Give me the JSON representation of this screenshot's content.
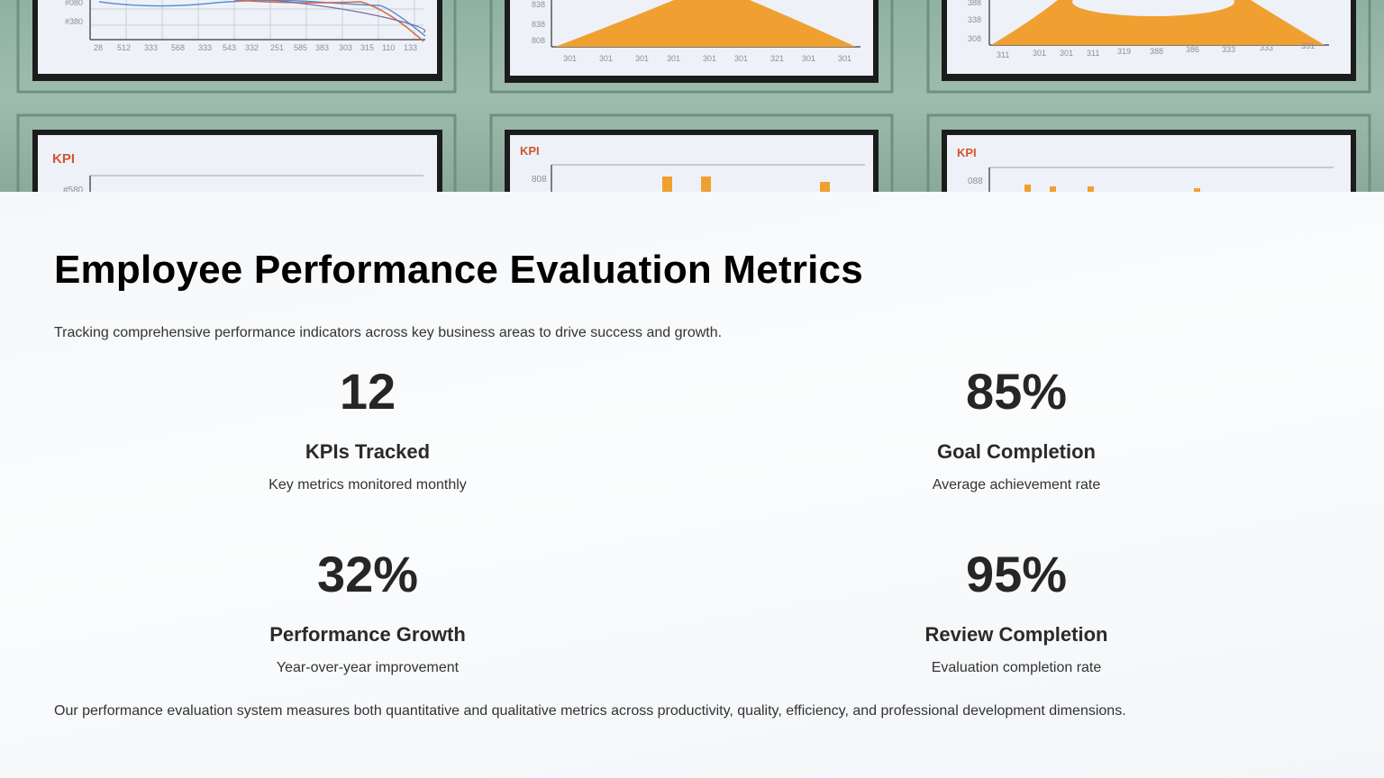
{
  "slide": {
    "title": "Employee Performance Evaluation Metrics",
    "subtitle": "Tracking comprehensive performance indicators across key business areas to drive success and growth.",
    "metrics": [
      {
        "value": "12",
        "label": "KPIs Tracked",
        "description": "Key metrics monitored monthly"
      },
      {
        "value": "85%",
        "label": "Goal Completion",
        "description": "Average achievement rate"
      },
      {
        "value": "32%",
        "label": "Performance Growth",
        "description": "Year-over-year improvement"
      },
      {
        "value": "95%",
        "label": "Review Completion",
        "description": "Evaluation completion rate"
      }
    ],
    "footer": "Our performance evaluation system measures both quantitative and qualitative metrics across productivity, quality, efficiency, and professional development dimensions."
  },
  "hero": {
    "panel_labels": [
      "KPI",
      "KPI",
      "KPI"
    ],
    "colors": {
      "wall": "#9ebcae",
      "accent_orange": "#f0a030",
      "screen": "#eef2f8"
    }
  }
}
